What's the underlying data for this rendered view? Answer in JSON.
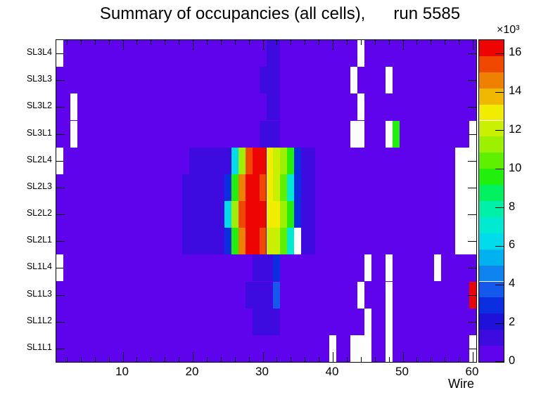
{
  "chart_data": {
    "type": "heatmap",
    "title": "Summary of occupancies (all cells),      run 5585",
    "xlabel": "Wire",
    "x_range": [
      0.5,
      60.5
    ],
    "n_wires": 60,
    "x_major_ticks": [
      10,
      20,
      30,
      40,
      50,
      60
    ],
    "x_minor_tick_step": 2,
    "y_categories": [
      "SL3L4",
      "SL3L3",
      "SL3L2",
      "SL3L1",
      "SL2L4",
      "SL2L3",
      "SL2L2",
      "SL2L1",
      "SL1L4",
      "SL1L3",
      "SL1L2",
      "SL1L1"
    ],
    "background_value": 400,
    "empty_value": 0,
    "palette": [
      "#5e03ec",
      "#3d0ae0",
      "#1f11d9",
      "#0b2fe0",
      "#1558ec",
      "#0d84f0",
      "#00b2f0",
      "#00dcec",
      "#00ead2",
      "#00f0a8",
      "#00f060",
      "#21f00c",
      "#5ff000",
      "#9cf000",
      "#c8f000",
      "#f0ed00",
      "#f0b800",
      "#f08000",
      "#f04800",
      "#ee0400"
    ],
    "colorbar": {
      "zmax": 16700,
      "tick_values": [
        0,
        2,
        4,
        6,
        8,
        10,
        12,
        14,
        16
      ],
      "exponent_label": "×10³"
    },
    "cells": [
      {
        "row": "SL3L4",
        "spans": [
          [
            1,
            1,
            0
          ],
          [
            31,
            32,
            1200
          ],
          [
            44,
            44,
            0
          ]
        ]
      },
      {
        "row": "SL3L3",
        "spans": [
          [
            30,
            32,
            1200
          ],
          [
            43,
            43,
            0
          ],
          [
            48,
            48,
            0
          ]
        ]
      },
      {
        "row": "SL3L2",
        "spans": [
          [
            3,
            3,
            0
          ],
          [
            31,
            32,
            1200
          ],
          [
            44,
            44,
            0
          ]
        ]
      },
      {
        "row": "SL3L1",
        "spans": [
          [
            3,
            3,
            0
          ],
          [
            30,
            32,
            1200
          ],
          [
            43,
            44,
            0
          ],
          [
            48,
            48,
            0
          ],
          [
            49,
            49,
            9600
          ],
          [
            60,
            60,
            0
          ]
        ]
      },
      {
        "row": "SL2L4",
        "spans": [
          [
            1,
            1,
            0
          ],
          [
            20,
            25,
            1200
          ],
          [
            26,
            26,
            6300
          ],
          [
            27,
            27,
            11300
          ],
          [
            28,
            28,
            15500
          ],
          [
            29,
            30,
            16300
          ],
          [
            31,
            31,
            12900
          ],
          [
            32,
            32,
            12100
          ],
          [
            33,
            33,
            11300
          ],
          [
            34,
            34,
            9600
          ],
          [
            35,
            35,
            2900
          ],
          [
            36,
            37,
            1200
          ],
          [
            58,
            60,
            0
          ]
        ]
      },
      {
        "row": "SL2L3",
        "spans": [
          [
            19,
            24,
            1200
          ],
          [
            25,
            25,
            2900
          ],
          [
            26,
            26,
            9600
          ],
          [
            27,
            27,
            14600
          ],
          [
            28,
            29,
            16300
          ],
          [
            30,
            30,
            15500
          ],
          [
            31,
            31,
            12900
          ],
          [
            32,
            32,
            12100
          ],
          [
            33,
            33,
            10400
          ],
          [
            34,
            34,
            7100
          ],
          [
            35,
            35,
            2900
          ],
          [
            36,
            37,
            1200
          ],
          [
            58,
            60,
            0
          ]
        ]
      },
      {
        "row": "SL2L2",
        "spans": [
          [
            19,
            24,
            1200
          ],
          [
            25,
            25,
            6300
          ],
          [
            26,
            26,
            11300
          ],
          [
            27,
            27,
            15500
          ],
          [
            28,
            30,
            16300
          ],
          [
            31,
            31,
            12900
          ],
          [
            32,
            32,
            12900
          ],
          [
            33,
            33,
            11300
          ],
          [
            34,
            34,
            9600
          ],
          [
            35,
            35,
            2900
          ],
          [
            36,
            37,
            1200
          ],
          [
            58,
            60,
            0
          ]
        ]
      },
      {
        "row": "SL2L1",
        "spans": [
          [
            19,
            24,
            1200
          ],
          [
            25,
            25,
            2900
          ],
          [
            26,
            26,
            9600
          ],
          [
            27,
            27,
            14600
          ],
          [
            28,
            29,
            16300
          ],
          [
            30,
            30,
            15500
          ],
          [
            31,
            32,
            12100
          ],
          [
            33,
            33,
            10400
          ],
          [
            34,
            34,
            7100
          ],
          [
            35,
            35,
            0
          ],
          [
            36,
            37,
            1200
          ],
          [
            58,
            60,
            0
          ]
        ]
      },
      {
        "row": "SL1L4",
        "spans": [
          [
            1,
            1,
            0
          ],
          [
            29,
            31,
            1200
          ],
          [
            32,
            32,
            2900
          ],
          [
            45,
            45,
            0
          ],
          [
            48,
            48,
            0
          ],
          [
            55,
            55,
            0
          ]
        ]
      },
      {
        "row": "SL1L3",
        "spans": [
          [
            28,
            31,
            1200
          ],
          [
            32,
            32,
            3800
          ],
          [
            44,
            44,
            0
          ],
          [
            48,
            48,
            0
          ],
          [
            60,
            60,
            16300
          ]
        ]
      },
      {
        "row": "SL1L2",
        "spans": [
          [
            29,
            32,
            1200
          ],
          [
            45,
            45,
            0
          ],
          [
            48,
            48,
            0
          ]
        ]
      },
      {
        "row": "SL1L1",
        "spans": [
          [
            40,
            40,
            0
          ],
          [
            43,
            45,
            0
          ],
          [
            48,
            48,
            0
          ],
          [
            60,
            60,
            0
          ]
        ]
      }
    ]
  }
}
